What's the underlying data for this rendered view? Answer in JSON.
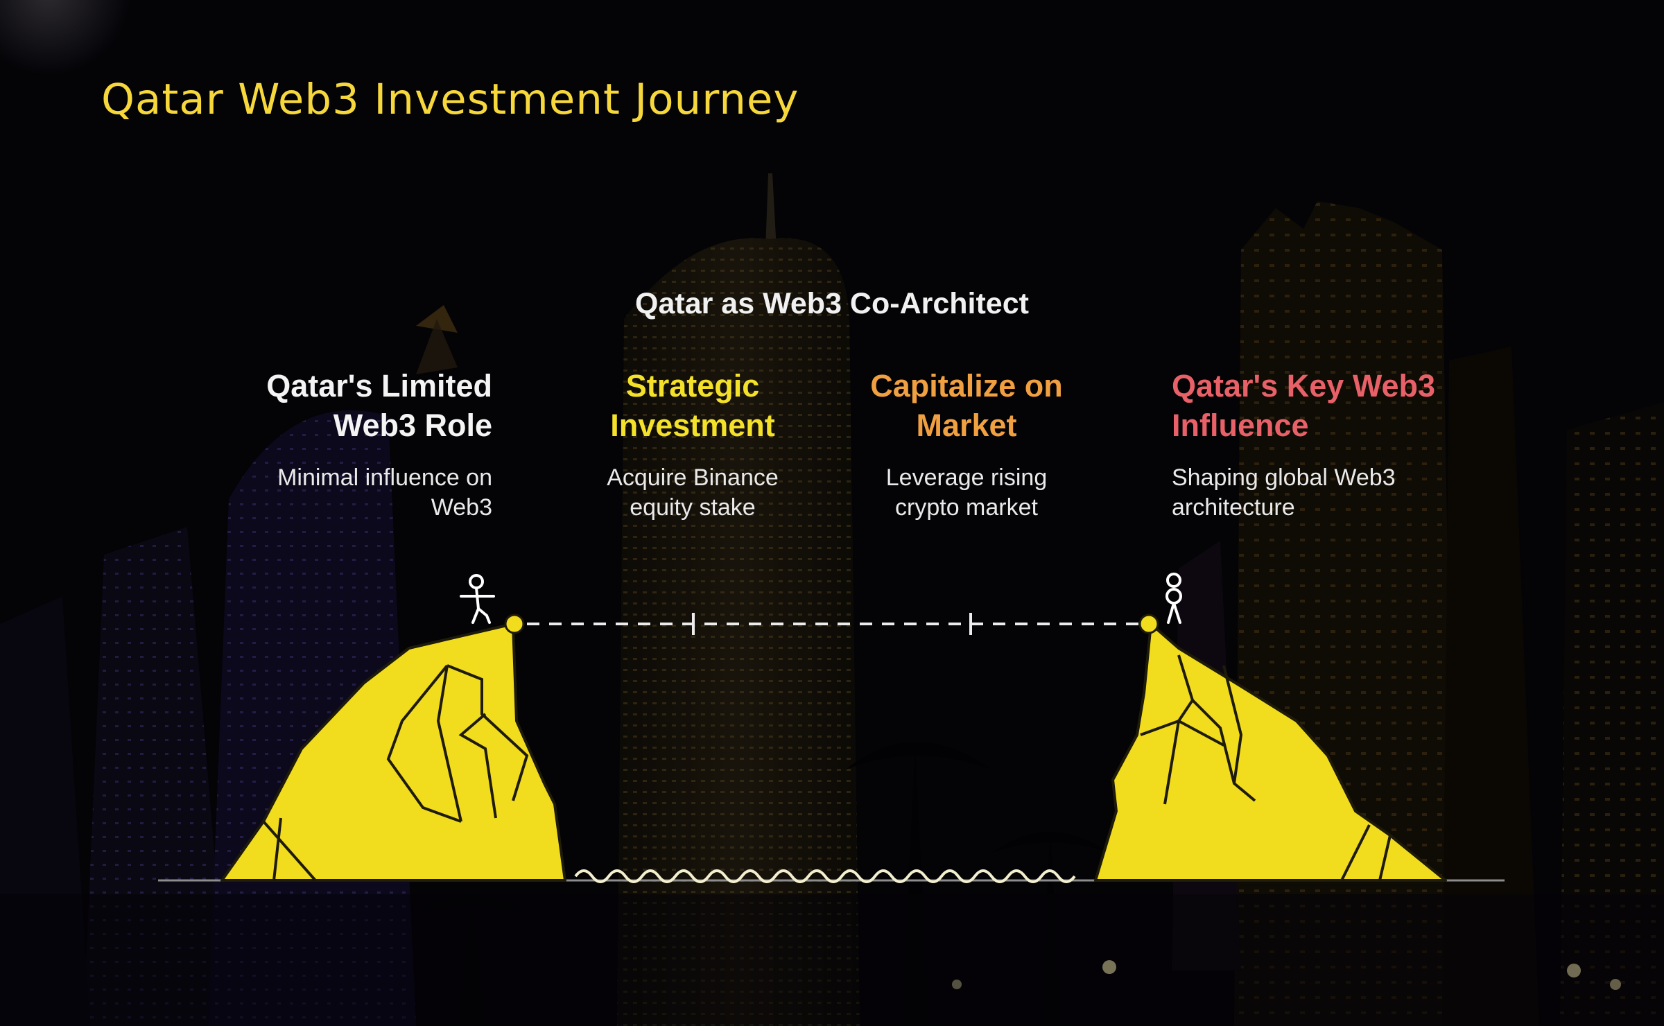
{
  "slide": {
    "title": "Qatar Web3 Investment Journey"
  },
  "diagram": {
    "title": "Qatar as Web3 Co-Architect",
    "stages": [
      {
        "heading_line1": "Qatar's Limited",
        "heading_line2": "Web3 Role",
        "desc_line1": "Minimal influence on",
        "desc_line2": "Web3"
      },
      {
        "heading_line1": "Strategic",
        "heading_line2": "Investment",
        "desc_line1": "Acquire Binance",
        "desc_line2": "equity stake"
      },
      {
        "heading_line1": "Capitalize on",
        "heading_line2": "Market",
        "desc_line1": "Leverage rising",
        "desc_line2": "crypto market"
      },
      {
        "heading_line1": "Qatar's Key Web3",
        "heading_line2": "Influence",
        "desc_line1": "Shaping global Web3",
        "desc_line2": "architecture"
      }
    ]
  },
  "colors": {
    "accent_yellow": "#f7d83c",
    "cliff_yellow": "#f2dc1e",
    "stage1_heading": "#f4f4f4",
    "stage2_heading": "#f4e12a",
    "stage3_heading": "#f0a040",
    "stage4_heading": "#e86168"
  },
  "icons": [
    "left-cliff-icon",
    "right-cliff-icon",
    "stick-figure-icon",
    "water-wave-icon"
  ]
}
